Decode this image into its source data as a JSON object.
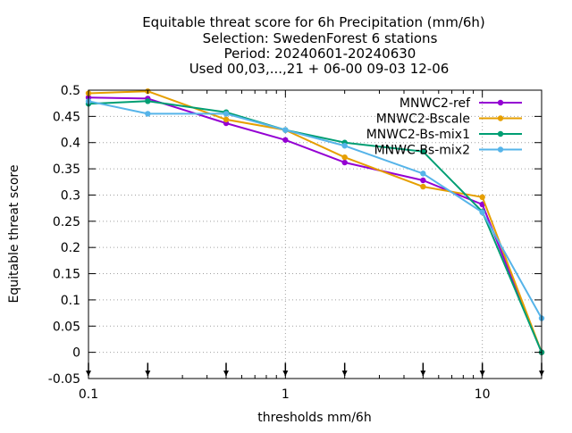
{
  "chart_data": {
    "type": "line",
    "title_lines": [
      "Equitable threat score  for 6h Precipitation (mm/6h)",
      "Selection: SwedenForest      6 stations",
      "Period: 20240601-20240630",
      "Used 00,03,...,21 + 06-00 09-03 12-06"
    ],
    "xlabel": "thresholds mm/6h",
    "ylabel": "Equitable threat score",
    "x_scale": "log",
    "xlim": [
      0.1,
      20
    ],
    "ylim": [
      -0.05,
      0.5
    ],
    "x_ticks": [
      0.1,
      1,
      10
    ],
    "x_tick_labels": [
      "0.1",
      "1",
      "10"
    ],
    "y_ticks": [
      -0.05,
      0,
      0.05,
      0.1,
      0.15,
      0.2,
      0.25,
      0.3,
      0.35,
      0.4,
      0.45,
      0.5
    ],
    "y_tick_labels": [
      "-0.05",
      "0",
      "0.05",
      "0.1",
      "0.15",
      "0.2",
      "0.25",
      "0.3",
      "0.35",
      "0.4",
      "0.45",
      "0.5"
    ],
    "threshold_markers": [
      0.1,
      0.2,
      0.5,
      1,
      2,
      5,
      10,
      20
    ],
    "x": [
      0.1,
      0.2,
      0.5,
      1,
      2,
      5,
      10,
      20
    ],
    "legend_position": "top-right",
    "series": [
      {
        "name": "MNWC2-ref",
        "color": "#9400d3",
        "values": [
          0.486,
          0.484,
          0.437,
          0.405,
          0.362,
          0.328,
          0.282,
          0.0
        ]
      },
      {
        "name": "MNWC2-Bscale",
        "color": "#e69f00",
        "values": [
          0.494,
          0.498,
          0.444,
          0.424,
          0.372,
          0.316,
          0.296,
          0.0
        ]
      },
      {
        "name": "MNWC2-Bs-mix1",
        "color": "#009e73",
        "values": [
          0.474,
          0.479,
          0.458,
          0.424,
          0.4,
          0.383,
          0.268,
          0.0
        ]
      },
      {
        "name": "MNWC-Bs-mix2",
        "color": "#56b4e9",
        "values": [
          0.479,
          0.455,
          0.455,
          0.424,
          0.394,
          0.341,
          0.267,
          0.065
        ]
      }
    ]
  }
}
